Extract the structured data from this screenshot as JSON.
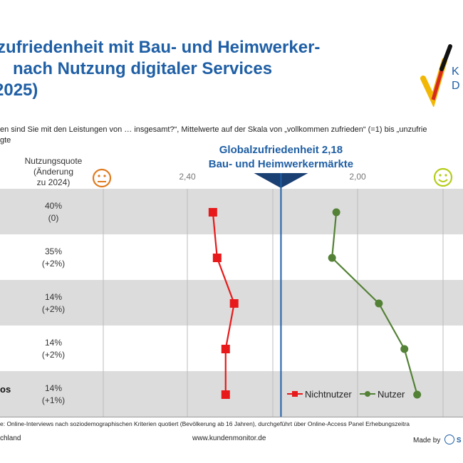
{
  "title_lines": [
    "zufriedenheit mit Bau- und Heimwerker-",
    "nach Nutzung digitaler Services",
    "2025)"
  ],
  "subtitle_lines": [
    "en sind Sie mit den Leistungen von … insgesamt?“, Mittelwerte  auf der Skala von „vollkommen zufrieden“ (=1) bis „unzufrie",
    "gte"
  ],
  "logo_text": [
    "K",
    "D"
  ],
  "footer": {
    "method": "e:   Online-Interviews  nach soziodemographischen   Kriterien quotiert  (Bevölkerung  ab 16 Jahren),  durchgeführt über Online-Access Panel         Erhebungszeitra",
    "left": "chland",
    "url": "www.kundenmonitor.de",
    "made_by": "Made by",
    "brand": "S"
  },
  "chart_data": {
    "type": "line",
    "quota_header": [
      "Nutzungsquote",
      "(Änderung",
      "zu 2024)"
    ],
    "xticks": [
      {
        "label": "2,40",
        "value": 2.4
      },
      {
        "label": "2,00",
        "value": 2.0
      }
    ],
    "x_reversed": true,
    "global": {
      "label_line1": "Globalzufriedenheit  2,18",
      "label_line2": "Bau- und Heimwerkermärkte",
      "value": 2.18
    },
    "rows": [
      {
        "label": "",
        "quota": "40%",
        "change": "(0)"
      },
      {
        "label": "",
        "quota": "35%",
        "change": "(+2%)"
      },
      {
        "label": "",
        "quota": "14%",
        "change": "(+2%)"
      },
      {
        "label": "",
        "quota": "14%",
        "change": "(+2%)"
      },
      {
        "label": "os",
        "quota": "14%",
        "change": "(+1%)"
      }
    ],
    "series": [
      {
        "name": "Nichtnutzer",
        "color": "#e8191a",
        "marker": "square",
        "values": [
          2.34,
          2.33,
          2.29,
          2.31,
          2.31
        ]
      },
      {
        "name": "Nutzer",
        "color": "#538135",
        "marker": "circle",
        "values": [
          2.05,
          2.06,
          1.95,
          1.89,
          1.86
        ]
      }
    ],
    "colors": {
      "band": "#dcdcdc",
      "global_line": "#1f5fa5",
      "sad_face": "#e07b1f",
      "happy_face": "#b5cc18"
    },
    "legend_position": "bottom-right"
  }
}
